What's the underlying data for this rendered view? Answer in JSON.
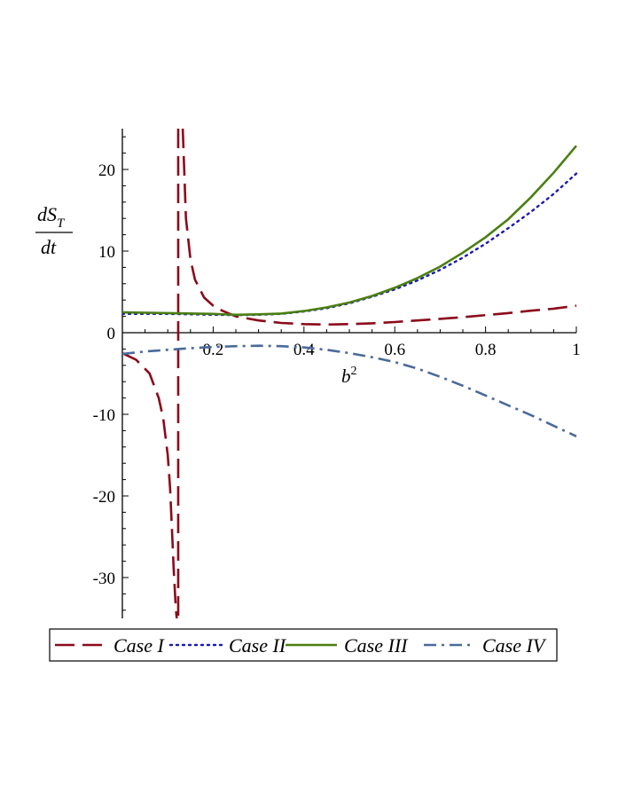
{
  "chart_data": {
    "type": "line",
    "xlabel": {
      "base": "b",
      "sup": "2"
    },
    "ylabel": {
      "num_base": "dS",
      "num_sub": "T",
      "den": "dt"
    },
    "xlim": [
      0.0,
      1.0
    ],
    "ylim": [
      -35,
      25
    ],
    "x_ticks": [
      0.2,
      0.4,
      0.6,
      0.8,
      1.0
    ],
    "x_tick_labels": [
      "0.2",
      "0.4",
      "0.6",
      "0.8",
      "1"
    ],
    "y_ticks": [
      -30,
      -20,
      -10,
      0,
      10,
      20
    ],
    "y_tick_labels": [
      "-30",
      "-20",
      "-10",
      "0",
      "10",
      "20"
    ],
    "grid": false,
    "legend_position": "bottom",
    "vertical_asymptote_x": 0.123,
    "series": [
      {
        "name": "Case I",
        "color": "#8b0a1a",
        "dash": "dash",
        "branches": [
          {
            "x": [
              0.0,
              0.03,
              0.06,
              0.08,
              0.09,
              0.1,
              0.105,
              0.11,
              0.113,
              0.116,
              0.118,
              0.12
            ],
            "y": [
              -2.5,
              -3.3,
              -5.0,
              -8.0,
              -10.5,
              -15.0,
              -19.0,
              -25.0,
              -29.0,
              -32.0,
              -34.0,
              -35.0
            ]
          },
          {
            "x": [
              0.133,
              0.14,
              0.15,
              0.16,
              0.18,
              0.2,
              0.22,
              0.25,
              0.3,
              0.35,
              0.4,
              0.45,
              0.5,
              0.55,
              0.6,
              0.65,
              0.7,
              0.75,
              0.8,
              0.85,
              0.9,
              0.95,
              1.0
            ],
            "y": [
              25.0,
              14.0,
              9.0,
              6.5,
              4.3,
              3.3,
              2.7,
              2.0,
              1.5,
              1.2,
              1.05,
              1.0,
              1.05,
              1.15,
              1.3,
              1.5,
              1.7,
              1.9,
              2.15,
              2.4,
              2.7,
              2.95,
              3.3
            ]
          }
        ]
      },
      {
        "name": "Case II",
        "color": "#1a1ab0",
        "dash": "dot",
        "branches": [
          {
            "x": [
              0.0,
              0.1,
              0.2,
              0.25,
              0.3,
              0.35,
              0.4,
              0.45,
              0.5,
              0.55,
              0.6,
              0.65,
              0.7,
              0.75,
              0.8,
              0.85,
              0.9,
              0.95,
              1.0
            ],
            "y": [
              2.3,
              2.3,
              2.2,
              2.15,
              2.2,
              2.3,
              2.6,
              3.0,
              3.6,
              4.4,
              5.3,
              6.4,
              7.7,
              9.2,
              10.9,
              12.8,
              14.8,
              17.0,
              19.5
            ]
          }
        ]
      },
      {
        "name": "Case III",
        "color": "#4a7f12",
        "dash": "solid",
        "branches": [
          {
            "x": [
              0.0,
              0.1,
              0.2,
              0.25,
              0.3,
              0.35,
              0.4,
              0.45,
              0.5,
              0.55,
              0.6,
              0.65,
              0.7,
              0.75,
              0.8,
              0.85,
              0.9,
              0.95,
              1.0
            ],
            "y": [
              2.5,
              2.4,
              2.3,
              2.2,
              2.25,
              2.35,
              2.65,
              3.1,
              3.7,
              4.5,
              5.5,
              6.7,
              8.1,
              9.8,
              11.7,
              13.9,
              16.6,
              19.6,
              22.9
            ]
          }
        ]
      },
      {
        "name": "Case IV",
        "color": "#4a6a9a",
        "dash": "dashdot",
        "branches": [
          {
            "x": [
              0.0,
              0.05,
              0.1,
              0.15,
              0.2,
              0.25,
              0.3,
              0.35,
              0.4,
              0.45,
              0.5,
              0.55,
              0.6,
              0.65,
              0.7,
              0.75,
              0.8,
              0.85,
              0.9,
              0.95,
              1.0
            ],
            "y": [
              -2.6,
              -2.3,
              -2.1,
              -1.9,
              -1.75,
              -1.65,
              -1.6,
              -1.65,
              -1.8,
              -2.1,
              -2.5,
              -3.0,
              -3.6,
              -4.4,
              -5.4,
              -6.5,
              -7.7,
              -8.9,
              -10.1,
              -11.4,
              -12.7
            ]
          }
        ]
      }
    ]
  }
}
